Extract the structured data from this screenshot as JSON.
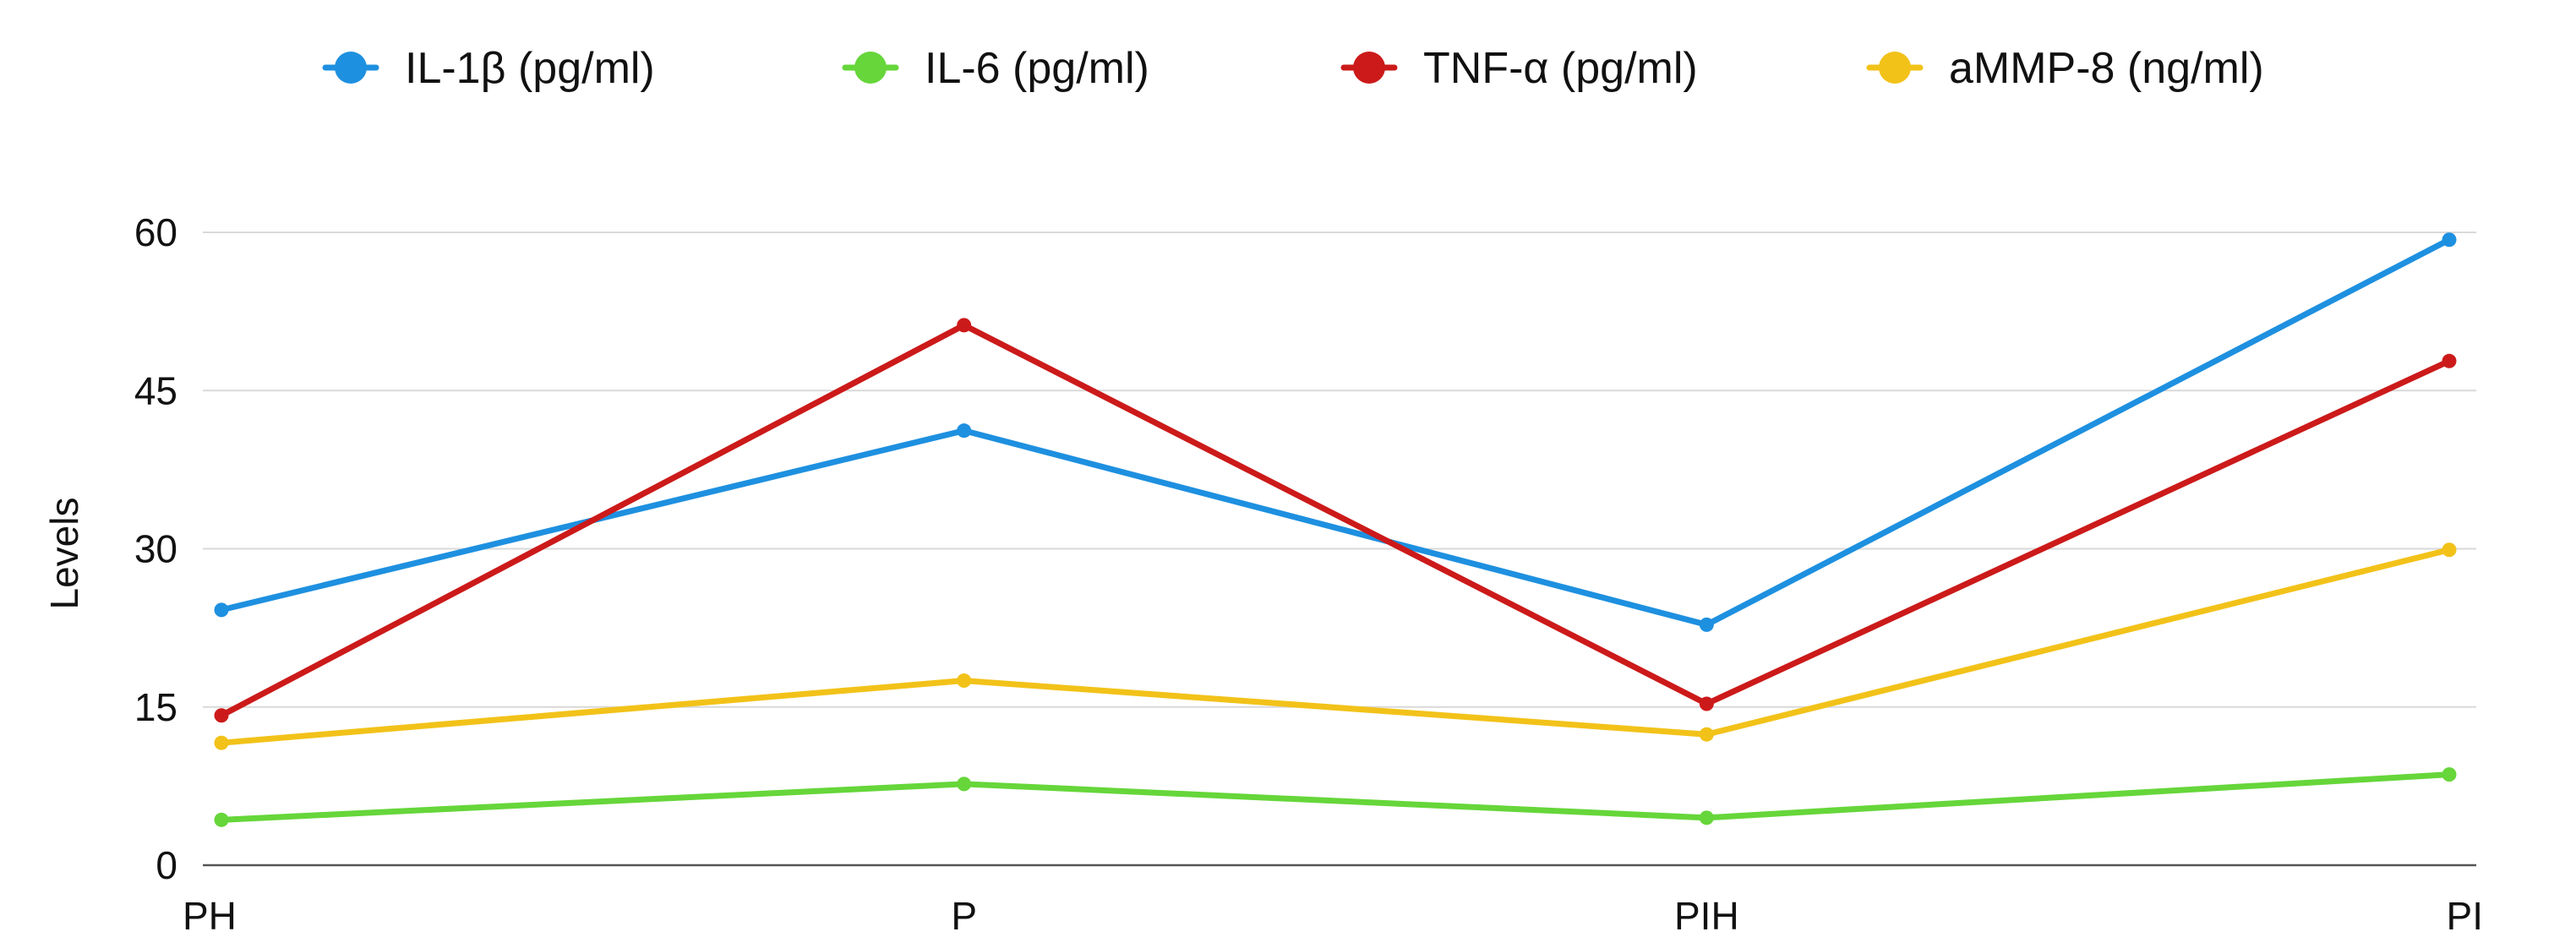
{
  "chart_data": {
    "type": "line",
    "title": "",
    "xlabel": "",
    "ylabel": "Levels",
    "categories": [
      "PH",
      "P",
      "PIH",
      "PI"
    ],
    "ylim": [
      0,
      60
    ],
    "yticks": [
      0,
      15,
      30,
      45,
      60
    ],
    "grid": true,
    "legend_position": "top",
    "series": [
      {
        "name": "IL-1β (pg/ml)",
        "color": "#1E90E0",
        "values": [
          24.2,
          41.2,
          22.8,
          59.3
        ]
      },
      {
        "name": "IL-6 (pg/ml)",
        "color": "#66D63A",
        "values": [
          4.3,
          7.7,
          4.5,
          8.6
        ]
      },
      {
        "name": "TNF-α (pg/ml)",
        "color": "#CC1A1A",
        "values": [
          14.2,
          51.2,
          15.3,
          47.8
        ]
      },
      {
        "name": "aMMP-8 (ng/ml)",
        "color": "#F2C219",
        "values": [
          11.6,
          17.5,
          12.4,
          29.9
        ]
      }
    ]
  }
}
